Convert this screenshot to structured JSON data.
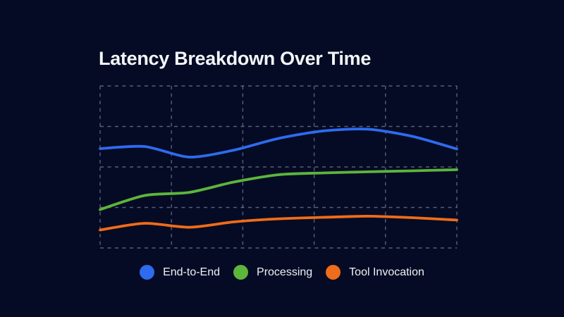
{
  "theme": {
    "background": "#050b24",
    "title_color": "#f3f5f9",
    "legend_text_color": "#eef1f6",
    "grid_color": "#9aa5b6"
  },
  "chart_data": {
    "type": "line",
    "title": "Latency Breakdown Over Time",
    "xlabel": "",
    "ylabel": "",
    "axis_tick_labels_visible": false,
    "note": "Axes are unlabeled in the source image; values are estimated as percent of plot-area height (0 = bottom gridline, 100 = top gridline).",
    "x": [
      0,
      1,
      2,
      3,
      4,
      5,
      6,
      7,
      8
    ],
    "ylim": [
      0,
      100
    ],
    "grid": {
      "style": "dashed",
      "columns": 5,
      "rows": 4
    },
    "legend": {
      "position": "bottom"
    },
    "series": [
      {
        "name": "End-to-End",
        "color": "#2e6bee",
        "values": [
          61.3,
          62.6,
          56.1,
          60.4,
          67.6,
          72.2,
          73.3,
          68.9,
          61.1
        ]
      },
      {
        "name": "Processing",
        "color": "#5db53c",
        "values": [
          23.7,
          32.4,
          34.3,
          40.7,
          45.2,
          46.3,
          47.0,
          47.6,
          48.3
        ]
      },
      {
        "name": "Tool Invocation",
        "color": "#ef6c1a",
        "values": [
          11.1,
          15.2,
          12.8,
          16.1,
          18.0,
          18.9,
          19.6,
          18.7,
          17.2
        ]
      }
    ]
  }
}
